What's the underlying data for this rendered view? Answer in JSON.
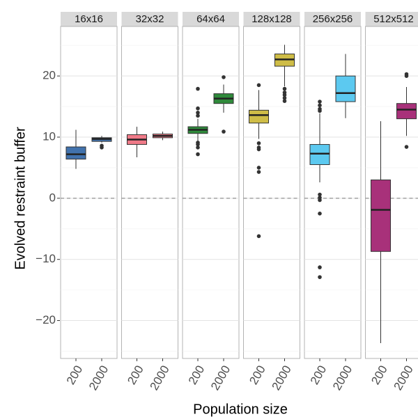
{
  "chart_data": {
    "type": "box",
    "ylabel": "Evolved restraint buffer",
    "xlabel": "Population size",
    "categories": [
      "200",
      "2000"
    ],
    "ylim": [
      -26.2,
      28.1
    ],
    "yticks": [
      {
        "value": -20,
        "label": "−20"
      },
      {
        "value": -10,
        "label": "−10"
      },
      0,
      10,
      20
    ],
    "yminor": [
      -25,
      -15,
      -5,
      5,
      15,
      25
    ],
    "grid": true,
    "hline": 0,
    "facets": [
      {
        "label": "16x16",
        "color": "#4172ad",
        "boxes": [
          {
            "min": 4.8,
            "q1": 6.4,
            "median": 7.2,
            "q3": 8.4,
            "max": 11.2,
            "outliers": []
          },
          {
            "min": 9.1,
            "q1": 9.3,
            "median": 9.7,
            "q3": 9.9,
            "max": 10.2,
            "outliers": [
              8.6,
              8.3
            ]
          }
        ]
      },
      {
        "label": "32x32",
        "color": "#f07a88",
        "boxes": [
          {
            "min": 6.7,
            "q1": 8.8,
            "median": 9.6,
            "q3": 10.4,
            "max": 11.7,
            "outliers": []
          },
          {
            "min": 9.5,
            "q1": 9.9,
            "median": 10.2,
            "q3": 10.5,
            "max": 10.9,
            "outliers": []
          }
        ]
      },
      {
        "label": "64x64",
        "color": "#2f8a3b",
        "boxes": [
          {
            "min": 9.3,
            "q1": 10.6,
            "median": 11.2,
            "q3": 11.7,
            "max": 13.0,
            "outliers": [
              17.9,
              14.7,
              14.0,
              13.5,
              9.1,
              8.8,
              8.3,
              7.2
            ]
          },
          {
            "min": 14.0,
            "q1": 15.5,
            "median": 16.3,
            "q3": 17.1,
            "max": 18.6,
            "outliers": [
              19.8,
              10.9
            ]
          }
        ]
      },
      {
        "label": "128x128",
        "color": "#cfbd47",
        "boxes": [
          {
            "min": 9.7,
            "q1": 12.3,
            "median": 13.6,
            "q3": 14.4,
            "max": 17.7,
            "outliers": [
              18.5,
              9.0,
              8.3,
              8.0,
              5.0,
              4.3,
              -6.2
            ]
          },
          {
            "min": 18.3,
            "q1": 21.6,
            "median": 22.7,
            "q3": 23.6,
            "max": 25.1,
            "outliers": [
              17.9,
              17.3,
              16.9,
              16.4,
              15.9
            ]
          }
        ]
      },
      {
        "label": "256x256",
        "color": "#5cc9f0",
        "boxes": [
          {
            "min": 2.6,
            "q1": 5.5,
            "median": 7.3,
            "q3": 8.8,
            "max": 13.9,
            "outliers": [
              15.8,
              15.2,
              14.6,
              14.3,
              0.6,
              0.1,
              -0.3,
              -2.5,
              -11.3,
              -12.9
            ]
          },
          {
            "min": 13.1,
            "q1": 15.8,
            "median": 17.2,
            "q3": 20.0,
            "max": 23.6,
            "outliers": []
          }
        ]
      },
      {
        "label": "512x512",
        "color": "#a8317a",
        "boxes": [
          {
            "min": -23.7,
            "q1": -8.7,
            "median": -1.9,
            "q3": 3.0,
            "max": 12.6,
            "outliers": []
          },
          {
            "min": 10.2,
            "q1": 13.0,
            "median": 14.5,
            "q3": 15.5,
            "max": 18.2,
            "outliers": [
              20.3,
              20.0,
              8.4
            ]
          }
        ]
      }
    ]
  }
}
